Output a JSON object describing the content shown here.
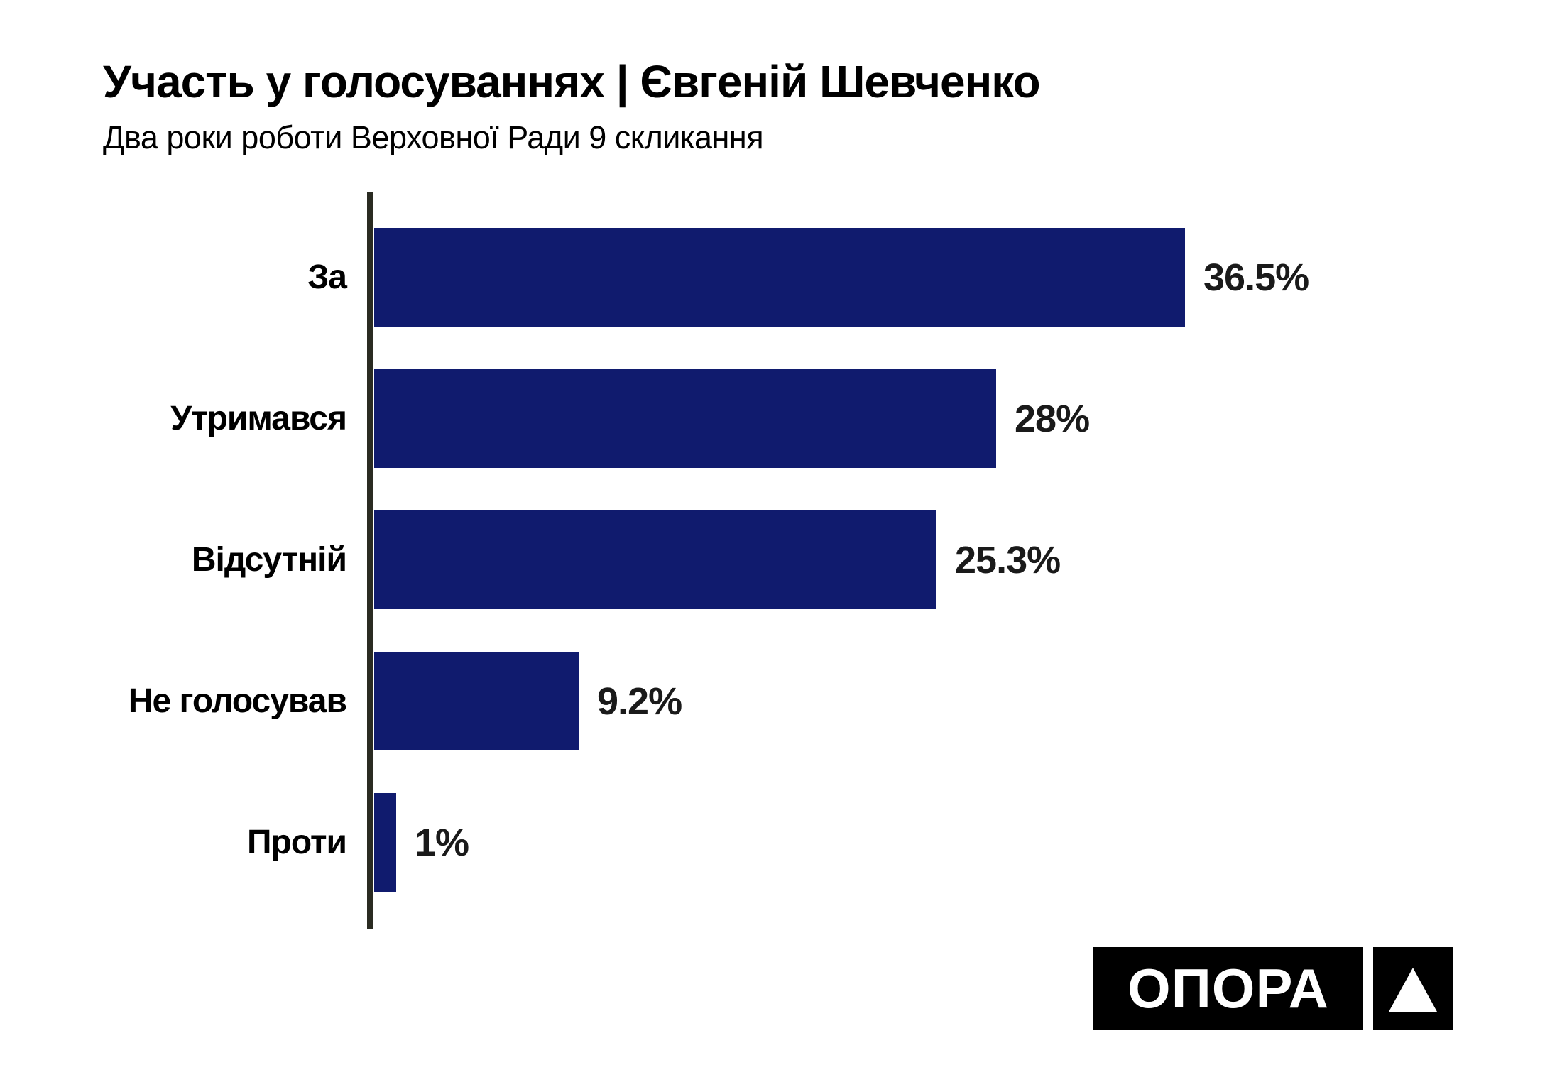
{
  "header": {
    "title": "Участь у голосуваннях | Євгеній Шевченко",
    "subtitle": "Два роки роботи Верховної Ради 9 скликання"
  },
  "chart_data": {
    "type": "bar",
    "orientation": "horizontal",
    "title": "Участь у голосуваннях | Євгеній Шевченко",
    "subtitle": "Два роки роботи Верховної Ради 9 скликання",
    "categories": [
      "За",
      "Утримався",
      "Відсутній",
      "Не голосував",
      "Проти"
    ],
    "values": [
      36.5,
      28,
      25.3,
      9.2,
      1
    ],
    "value_labels": [
      "36.5%",
      "28%",
      "25.3%",
      "9.2%",
      "1%"
    ],
    "xlabel": "",
    "ylabel": "",
    "xlim": [
      0,
      40
    ],
    "grid": false,
    "legend": false,
    "value_label_position": "right-of-bar-end",
    "bar_color": "#101b6e",
    "axis_color": "#2a2b22",
    "text_color": "#000000",
    "background_color": "#ffffff"
  },
  "logo": {
    "text": "ОПОРА",
    "bg_color": "#000000",
    "fg_color": "#ffffff",
    "triangle_icon": "triangle-up"
  }
}
